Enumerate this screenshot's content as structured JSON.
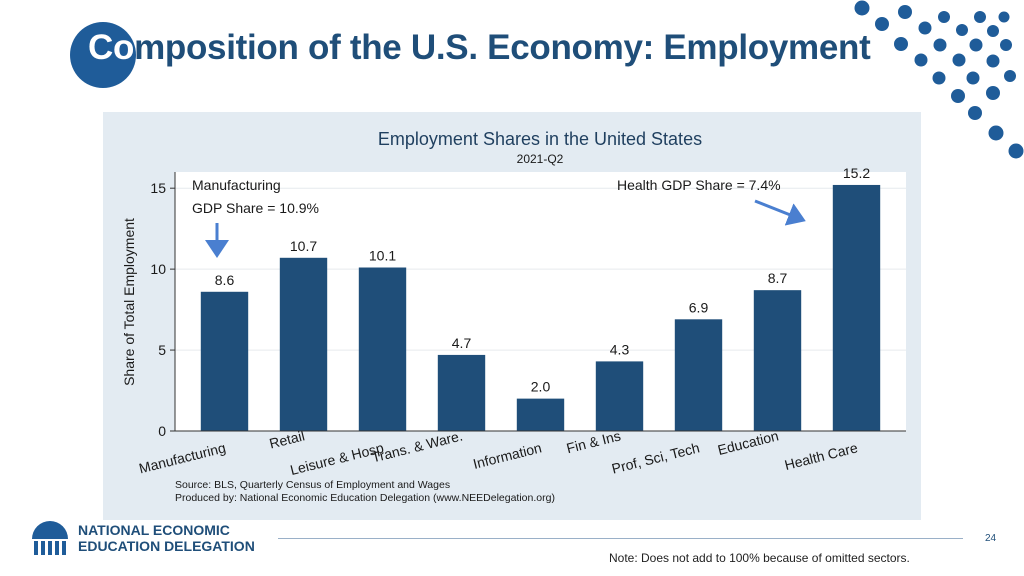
{
  "slide": {
    "title_highlight": "Co",
    "title_rest": "mposition of the U.S. Economy: Employment",
    "page_number": "24",
    "note": "Note: Does not add to 100% because of omitted sectors.",
    "logo_line1": "NATIONAL ECONOMIC",
    "logo_line2": "EDUCATION DELEGATION"
  },
  "colors": {
    "bar": "#1f4e79",
    "title": "#1f4e79",
    "accent": "#1f5c99",
    "arrow": "#4a7fd0",
    "panel": "#e3ebf2"
  },
  "chart_data": {
    "type": "bar",
    "title": "Employment Shares in the United States",
    "subtitle": "2021-Q2",
    "xlabel": "",
    "ylabel": "Share of Total Employment",
    "ylim": [
      0,
      16
    ],
    "yticks": [
      0,
      5,
      10,
      15
    ],
    "grid": true,
    "categories": [
      "Manufacturing",
      "Retail",
      "Leisure & Hosp",
      "Trans. & Ware.",
      "Information",
      "Fin & Ins",
      "Prof, Sci, Tech",
      "Education",
      "Health Care"
    ],
    "values": [
      8.6,
      10.7,
      10.1,
      4.7,
      2.0,
      4.3,
      6.9,
      8.7,
      15.2
    ],
    "value_labels": [
      "8.6",
      "10.7",
      "10.1",
      "4.7",
      "2.0",
      "4.3",
      "6.9",
      "8.7",
      "15.2"
    ],
    "annotations": {
      "manufacturing_line1": "Manufacturing",
      "manufacturing_line2": "GDP Share = 10.9%",
      "health": "Health GDP Share = 7.4%"
    },
    "source": "Source: BLS, Quarterly Census of Employment and Wages",
    "producer": "Produced by: National Economic Education Delegation (www.NEEDelegation.org)"
  }
}
